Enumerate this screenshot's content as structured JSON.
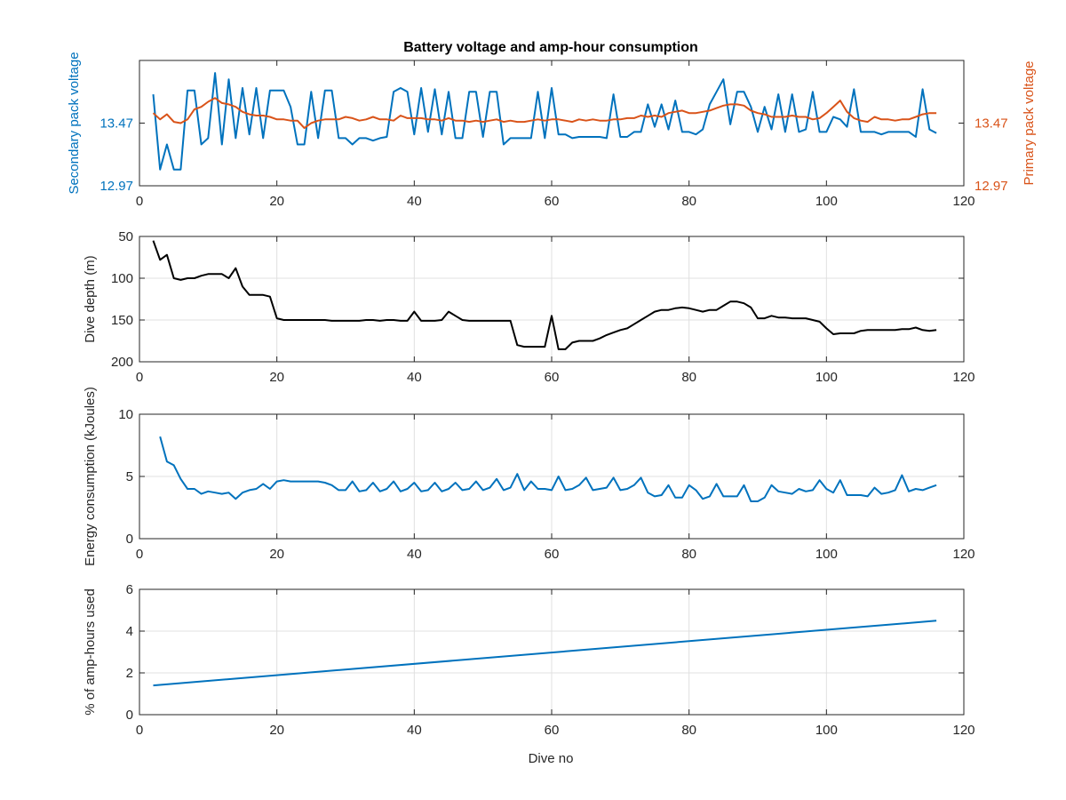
{
  "figure": {
    "title": "Battery voltage and amp-hour consumption",
    "xlabel": "Dive no"
  },
  "colors": {
    "blue": "#0072BD",
    "orange": "#D95319",
    "black": "#000000",
    "grid": "#E0E0E0",
    "axis": "#262626"
  },
  "chart_data": [
    {
      "type": "line",
      "title": "Battery voltage and amp-hour consumption",
      "xlim": [
        0,
        120
      ],
      "xticks": [
        0,
        20,
        40,
        60,
        80,
        100,
        120
      ],
      "ylabel": "Secondary pack voltage",
      "ylim": [
        12.97,
        13.97
      ],
      "yticks": [
        12.97,
        13.47
      ],
      "y2label": "Primary pack voltage",
      "y2lim": [
        12.97,
        13.97
      ],
      "y2ticks": [
        12.97,
        13.47
      ],
      "grid": false,
      "series": [
        {
          "axis": "left",
          "x": [
            2,
            3,
            4,
            5,
            6,
            7,
            8,
            9,
            10,
            11,
            12,
            13,
            14,
            15,
            16,
            17,
            18,
            19,
            20,
            21,
            22,
            23,
            24,
            25,
            26,
            27,
            28,
            29,
            30,
            31,
            32,
            33,
            34,
            35,
            36,
            37,
            38,
            39,
            40,
            41,
            42,
            43,
            44,
            45,
            46,
            47,
            48,
            49,
            50,
            51,
            52,
            53,
            54,
            55,
            56,
            57,
            58,
            59,
            60,
            61,
            62,
            63,
            64,
            65,
            66,
            67,
            68,
            69,
            70,
            71,
            72,
            73,
            74,
            75,
            76,
            77,
            78,
            79,
            80,
            81,
            82,
            83,
            84,
            85,
            86,
            87,
            88,
            89,
            90,
            91,
            92,
            93,
            94,
            95,
            96,
            97,
            98,
            99,
            100,
            101,
            102,
            103,
            104,
            105,
            106,
            107,
            108,
            109,
            110,
            111,
            112,
            113,
            114,
            115,
            116
          ],
          "values": [
            13.7,
            13.1,
            13.3,
            13.1,
            13.1,
            13.73,
            13.73,
            13.3,
            13.35,
            13.87,
            13.3,
            13.82,
            13.35,
            13.75,
            13.38,
            13.75,
            13.35,
            13.73,
            13.73,
            13.73,
            13.6,
            13.3,
            13.3,
            13.72,
            13.35,
            13.73,
            13.73,
            13.35,
            13.35,
            13.3,
            13.35,
            13.35,
            13.33,
            13.35,
            13.36,
            13.72,
            13.75,
            13.72,
            13.38,
            13.75,
            13.4,
            13.74,
            13.38,
            13.72,
            13.35,
            13.35,
            13.72,
            13.72,
            13.36,
            13.72,
            13.72,
            13.3,
            13.35,
            13.35,
            13.35,
            13.35,
            13.72,
            13.35,
            13.75,
            13.38,
            13.38,
            13.35,
            13.36,
            13.36,
            13.36,
            13.36,
            13.35,
            13.7,
            13.36,
            13.36,
            13.4,
            13.4,
            13.62,
            13.44,
            13.62,
            13.42,
            13.65,
            13.4,
            13.4,
            13.38,
            13.42,
            13.62,
            13.72,
            13.82,
            13.46,
            13.72,
            13.72,
            13.6,
            13.4,
            13.6,
            13.42,
            13.7,
            13.4,
            13.7,
            13.4,
            13.42,
            13.72,
            13.4,
            13.4,
            13.52,
            13.5,
            13.44,
            13.74,
            13.4,
            13.4,
            13.4,
            13.38,
            13.4,
            13.4,
            13.4,
            13.4,
            13.36,
            13.74,
            13.42,
            13.39
          ]
        },
        {
          "axis": "right",
          "x": [
            2,
            3,
            4,
            5,
            6,
            7,
            8,
            9,
            10,
            11,
            12,
            13,
            14,
            15,
            16,
            17,
            18,
            19,
            20,
            21,
            22,
            23,
            24,
            25,
            26,
            27,
            28,
            29,
            30,
            31,
            32,
            33,
            34,
            35,
            36,
            37,
            38,
            39,
            40,
            41,
            42,
            43,
            44,
            45,
            46,
            47,
            48,
            49,
            50,
            51,
            52,
            53,
            54,
            55,
            56,
            57,
            58,
            59,
            60,
            61,
            62,
            63,
            64,
            65,
            66,
            67,
            68,
            69,
            70,
            71,
            72,
            73,
            74,
            75,
            76,
            77,
            78,
            79,
            80,
            81,
            82,
            83,
            84,
            85,
            86,
            87,
            88,
            89,
            90,
            91,
            92,
            93,
            94,
            95,
            96,
            97,
            98,
            99,
            100,
            101,
            102,
            103,
            104,
            105,
            106,
            107,
            108,
            109,
            110,
            111,
            112,
            113,
            114,
            115,
            116
          ],
          "values": [
            13.55,
            13.5,
            13.54,
            13.48,
            13.47,
            13.5,
            13.58,
            13.6,
            13.64,
            13.67,
            13.63,
            13.62,
            13.6,
            13.56,
            13.54,
            13.53,
            13.53,
            13.52,
            13.5,
            13.5,
            13.49,
            13.49,
            13.43,
            13.47,
            13.49,
            13.5,
            13.5,
            13.5,
            13.52,
            13.51,
            13.49,
            13.5,
            13.52,
            13.5,
            13.5,
            13.49,
            13.53,
            13.51,
            13.51,
            13.51,
            13.5,
            13.5,
            13.49,
            13.51,
            13.49,
            13.49,
            13.48,
            13.49,
            13.48,
            13.49,
            13.5,
            13.48,
            13.49,
            13.48,
            13.48,
            13.49,
            13.5,
            13.49,
            13.5,
            13.5,
            13.49,
            13.48,
            13.5,
            13.49,
            13.5,
            13.49,
            13.49,
            13.5,
            13.5,
            13.51,
            13.51,
            13.53,
            13.52,
            13.53,
            13.52,
            13.55,
            13.56,
            13.57,
            13.55,
            13.55,
            13.56,
            13.57,
            13.59,
            13.61,
            13.62,
            13.62,
            13.61,
            13.57,
            13.55,
            13.54,
            13.52,
            13.52,
            13.52,
            13.53,
            13.52,
            13.52,
            13.5,
            13.51,
            13.55,
            13.6,
            13.65,
            13.56,
            13.51,
            13.49,
            13.48,
            13.52,
            13.5,
            13.5,
            13.49,
            13.5,
            13.5,
            13.52,
            13.54,
            13.55,
            13.55
          ]
        }
      ]
    },
    {
      "type": "line",
      "xlim": [
        0,
        120
      ],
      "xticks": [
        0,
        20,
        40,
        60,
        80,
        100,
        120
      ],
      "ylabel": "Dive depth (m)",
      "ylim": [
        -200,
        -50
      ],
      "yticks": [
        -200,
        -150,
        -100,
        -50
      ],
      "ytick_labels": [
        "200",
        "150",
        "100",
        "50"
      ],
      "grid": true,
      "series": [
        {
          "x": [
            2,
            3,
            4,
            5,
            6,
            7,
            8,
            9,
            10,
            11,
            12,
            13,
            14,
            15,
            16,
            17,
            18,
            19,
            20,
            21,
            22,
            23,
            24,
            25,
            26,
            27,
            28,
            29,
            30,
            31,
            32,
            33,
            34,
            35,
            36,
            37,
            38,
            39,
            40,
            41,
            42,
            43,
            44,
            45,
            46,
            47,
            48,
            49,
            50,
            51,
            52,
            53,
            54,
            55,
            56,
            57,
            58,
            59,
            60,
            61,
            62,
            63,
            64,
            65,
            66,
            67,
            68,
            69,
            70,
            71,
            72,
            73,
            74,
            75,
            76,
            77,
            78,
            79,
            80,
            81,
            82,
            83,
            84,
            85,
            86,
            87,
            88,
            89,
            90,
            91,
            92,
            93,
            94,
            95,
            96,
            97,
            98,
            99,
            100,
            101,
            102,
            103,
            104,
            105,
            106,
            107,
            108,
            109,
            110,
            111,
            112,
            113,
            114,
            115,
            116
          ],
          "values": [
            -55,
            -78,
            -72,
            -100,
            -102,
            -100,
            -100,
            -97,
            -95,
            -95,
            -95,
            -100,
            -88,
            -110,
            -120,
            -120,
            -120,
            -122,
            -148,
            -150,
            -150,
            -150,
            -150,
            -150,
            -150,
            -150,
            -151,
            -151,
            -151,
            -151,
            -151,
            -150,
            -150,
            -151,
            -150,
            -150,
            -151,
            -151,
            -140,
            -151,
            -151,
            -151,
            -150,
            -140,
            -145,
            -150,
            -151,
            -151,
            -151,
            -151,
            -151,
            -151,
            -151,
            -180,
            -182,
            -182,
            -182,
            -182,
            -145,
            -185,
            -185,
            -177,
            -175,
            -175,
            -175,
            -172,
            -168,
            -165,
            -162,
            -160,
            -155,
            -150,
            -145,
            -140,
            -138,
            -138,
            -136,
            -135,
            -136,
            -138,
            -140,
            -138,
            -138,
            -133,
            -128,
            -128,
            -130,
            -135,
            -148,
            -148,
            -145,
            -147,
            -147,
            -148,
            -148,
            -148,
            -150,
            -152,
            -160,
            -167,
            -166,
            -166,
            -166,
            -163,
            -162,
            -162,
            -162,
            -162,
            -162,
            -161,
            -161,
            -159,
            -162,
            -163,
            -162
          ]
        }
      ]
    },
    {
      "type": "line",
      "xlim": [
        0,
        120
      ],
      "xticks": [
        0,
        20,
        40,
        60,
        80,
        100,
        120
      ],
      "ylabel": "Energy consumption (kJoules)",
      "ylim": [
        0,
        10
      ],
      "yticks": [
        0,
        5,
        10
      ],
      "grid": true,
      "series": [
        {
          "x": [
            3,
            4,
            5,
            6,
            7,
            8,
            9,
            10,
            11,
            12,
            13,
            14,
            15,
            16,
            17,
            18,
            19,
            20,
            21,
            22,
            23,
            24,
            25,
            26,
            27,
            28,
            29,
            30,
            31,
            32,
            33,
            34,
            35,
            36,
            37,
            38,
            39,
            40,
            41,
            42,
            43,
            44,
            45,
            46,
            47,
            48,
            49,
            50,
            51,
            52,
            53,
            54,
            55,
            56,
            57,
            58,
            59,
            60,
            61,
            62,
            63,
            64,
            65,
            66,
            67,
            68,
            69,
            70,
            71,
            72,
            73,
            74,
            75,
            76,
            77,
            78,
            79,
            80,
            81,
            82,
            83,
            84,
            85,
            86,
            87,
            88,
            89,
            90,
            91,
            92,
            93,
            94,
            95,
            96,
            97,
            98,
            99,
            100,
            101,
            102,
            103,
            104,
            105,
            106,
            107,
            108,
            109,
            110,
            111,
            112,
            113,
            114,
            115,
            116
          ],
          "values": [
            8.2,
            6.2,
            5.9,
            4.8,
            4.0,
            4.0,
            3.6,
            3.8,
            3.7,
            3.6,
            3.7,
            3.2,
            3.7,
            3.9,
            4.0,
            4.4,
            4.0,
            4.6,
            4.7,
            4.6,
            4.6,
            4.6,
            4.6,
            4.6,
            4.5,
            4.3,
            3.9,
            3.9,
            4.6,
            3.8,
            3.9,
            4.5,
            3.8,
            4.0,
            4.6,
            3.8,
            4.0,
            4.5,
            3.8,
            3.9,
            4.5,
            3.8,
            4.0,
            4.5,
            3.9,
            4.0,
            4.6,
            3.9,
            4.1,
            4.8,
            3.9,
            4.1,
            5.2,
            3.9,
            4.6,
            4.0,
            4.0,
            3.9,
            5.0,
            3.9,
            4.0,
            4.3,
            4.9,
            3.9,
            4.0,
            4.1,
            4.9,
            3.9,
            4.0,
            4.3,
            4.9,
            3.7,
            3.4,
            3.5,
            4.3,
            3.3,
            3.3,
            4.3,
            3.9,
            3.2,
            3.4,
            4.4,
            3.4,
            3.4,
            3.4,
            4.3,
            3.0,
            3.0,
            3.3,
            4.3,
            3.8,
            3.7,
            3.6,
            4.0,
            3.8,
            3.9,
            4.7,
            4.0,
            3.7,
            4.7,
            3.5,
            3.5,
            3.5,
            3.4,
            4.1,
            3.6,
            3.7,
            3.9,
            5.1,
            3.8,
            4.0,
            3.9,
            4.1,
            4.3
          ]
        }
      ]
    },
    {
      "type": "line",
      "xlim": [
        0,
        120
      ],
      "xticks": [
        0,
        20,
        40,
        60,
        80,
        100,
        120
      ],
      "xlabel": "Dive no",
      "ylabel": "% of amp-hours used",
      "ylim": [
        0,
        6
      ],
      "yticks": [
        0,
        2,
        4,
        6
      ],
      "grid": true,
      "series": [
        {
          "x": [
            2,
            116
          ],
          "values": [
            1.4,
            4.5
          ]
        }
      ]
    }
  ]
}
